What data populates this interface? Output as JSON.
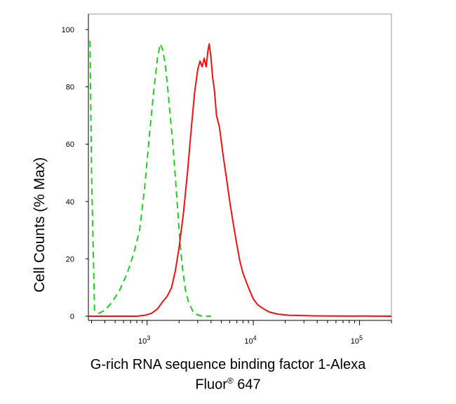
{
  "chart_data": {
    "type": "line",
    "title": "",
    "xlabel_line1": "G-rich RNA sequence binding factor 1-Alexa",
    "xlabel_line2": "Fluor",
    "xlabel_sup": "®",
    "xlabel_line2_tail": " 647",
    "ylabel": "Cell Counts (% Max)",
    "x_scale": "log",
    "xlim": [
      280,
      200000
    ],
    "ylim": [
      0,
      100
    ],
    "y_ticks": [
      {
        "value": 0,
        "label": "0"
      },
      {
        "value": 20,
        "label": "20"
      },
      {
        "value": 40,
        "label": "40"
      },
      {
        "value": 60,
        "label": "60"
      },
      {
        "value": 80,
        "label": "80"
      },
      {
        "value": 100,
        "label": "100"
      }
    ],
    "x_ticks": [
      {
        "value": 1000,
        "base": "10",
        "exp": "3"
      },
      {
        "value": 10000,
        "base": "10",
        "exp": "4"
      },
      {
        "value": 100000,
        "base": "10",
        "exp": "5"
      }
    ],
    "grid": false,
    "legend": "none",
    "series": [
      {
        "color": "#22cc22",
        "style": "dashed",
        "x": [
          290,
          300,
          320,
          350,
          400,
          470,
          550,
          650,
          750,
          850,
          950,
          1050,
          1150,
          1250,
          1330,
          1400,
          1480,
          1560,
          1650,
          1750,
          1850,
          1950,
          2050,
          2150,
          2300,
          2450,
          2600,
          2750,
          3000,
          3300,
          4000
        ],
        "y": [
          96,
          50,
          2,
          1,
          2,
          5,
          9,
          15,
          22,
          30,
          45,
          63,
          78,
          90,
          95,
          93,
          88,
          80,
          70,
          60,
          48,
          36,
          25,
          17,
          9,
          5,
          3,
          1,
          0.5,
          0,
          0
        ]
      },
      {
        "color": "#ee1111",
        "style": "solid",
        "x": [
          280,
          800,
          950,
          1100,
          1250,
          1400,
          1550,
          1700,
          1850,
          2000,
          2200,
          2400,
          2600,
          2800,
          3000,
          3150,
          3300,
          3450,
          3600,
          3750,
          3850,
          4000,
          4150,
          4300,
          4500,
          4800,
          5200,
          5600,
          6000,
          6500,
          7000,
          7500,
          8000,
          9000,
          10000,
          11000,
          12000,
          14000,
          17000,
          22000,
          40000,
          200000
        ],
        "y": [
          0,
          0,
          0.3,
          1,
          2.5,
          5,
          7,
          10,
          16,
          24,
          36,
          50,
          65,
          78,
          86,
          89,
          87,
          90,
          87,
          93,
          95,
          90,
          83,
          79,
          70,
          66,
          56,
          48,
          40,
          32,
          25,
          19,
          15,
          10,
          6,
          4,
          3,
          1.5,
          0.7,
          0.3,
          0.1,
          0
        ]
      }
    ]
  }
}
